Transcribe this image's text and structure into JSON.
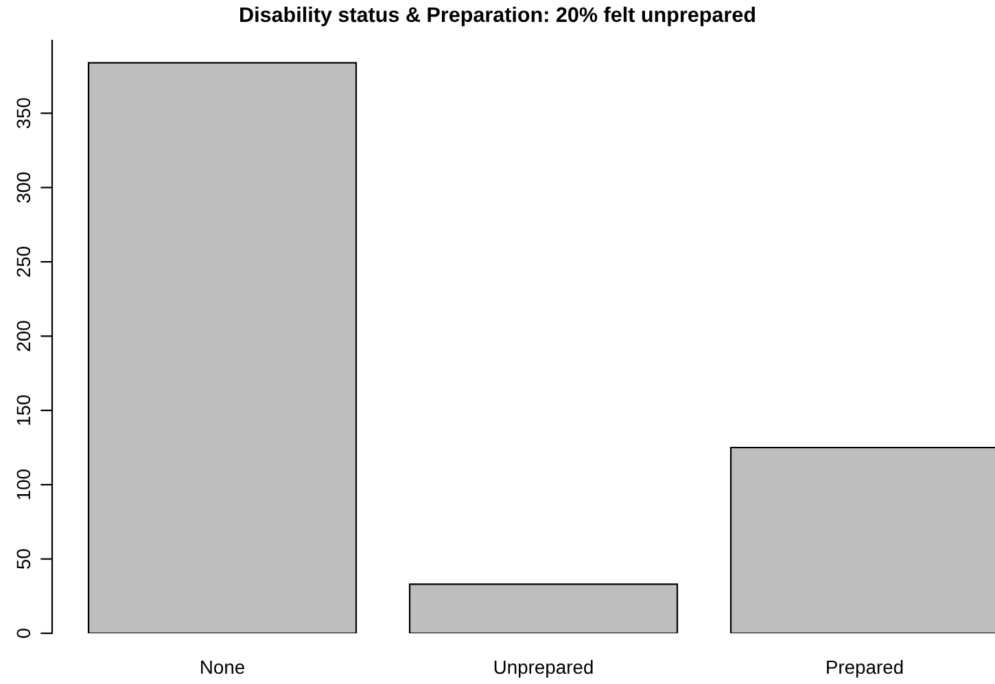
{
  "chart_data": {
    "type": "bar",
    "title": "Disability status & Preparation: 20% felt unprepared",
    "categories": [
      "None",
      "Unprepared",
      "Prepared"
    ],
    "values": [
      384,
      33,
      125
    ],
    "color": "#bebebe",
    "ylim": [
      0,
      399
    ],
    "yticks": [
      0,
      50,
      100,
      150,
      200,
      250,
      300,
      350
    ],
    "grid": false
  }
}
